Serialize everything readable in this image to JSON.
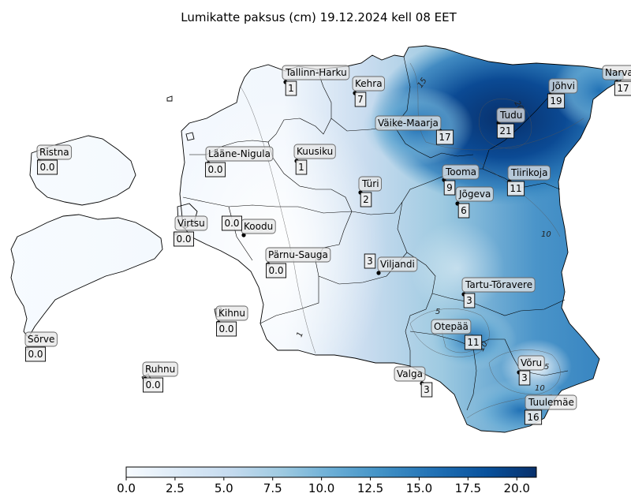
{
  "title": "Lumikatte paksus (cm) 19.12.2024 kell 08 EET",
  "colors": {
    "low": "#f7fbff",
    "mid": "#6baed6",
    "high": "#08306b",
    "contour": "#555555",
    "station_label_bg": "#e6e6e6",
    "station_value_bg": "#eeeeee"
  },
  "colorbar": {
    "min": 0,
    "max": 21,
    "ticks": [
      "0.0",
      "2.5",
      "5.0",
      "7.5",
      "10.0",
      "12.5",
      "15.0",
      "17.5",
      "20.0"
    ]
  },
  "contour_labels": [
    "15",
    "20",
    "10",
    "5",
    "10",
    "10",
    "1",
    "5"
  ],
  "stations": [
    {
      "name": "Tallinn-Harku",
      "value": "1"
    },
    {
      "name": "Kehra",
      "value": "7"
    },
    {
      "name": "Narva",
      "value": "17"
    },
    {
      "name": "Jõhvi",
      "value": "19"
    },
    {
      "name": "Tudu",
      "value": "21"
    },
    {
      "name": "Väike-Maarja",
      "value": "17"
    },
    {
      "name": "Ristna",
      "value": "0.0"
    },
    {
      "name": "Lääne-Nigula",
      "value": "0.0"
    },
    {
      "name": "Kuusiku",
      "value": "1"
    },
    {
      "name": "Tooma",
      "value": "9"
    },
    {
      "name": "Jõgeva",
      "value": "6"
    },
    {
      "name": "Tiirikoja",
      "value": "11"
    },
    {
      "name": "Türi",
      "value": "2"
    },
    {
      "name": "Virtsu",
      "value": "0.0"
    },
    {
      "name": "Koodu",
      "value": "0.0"
    },
    {
      "name": "Pärnu-Sauga",
      "value": "0.0"
    },
    {
      "name": "Viljandi",
      "value": "3"
    },
    {
      "name": "Tartu-Tõravere",
      "value": "3"
    },
    {
      "name": "Kihnu",
      "value": "0.0"
    },
    {
      "name": "Sõrve",
      "value": "0.0"
    },
    {
      "name": "Otepää",
      "value": "11"
    },
    {
      "name": "Ruhnu",
      "value": "0.0"
    },
    {
      "name": "Valga",
      "value": "3"
    },
    {
      "name": "Võru",
      "value": "3"
    },
    {
      "name": "Tuulemäe",
      "value": "16"
    }
  ]
}
